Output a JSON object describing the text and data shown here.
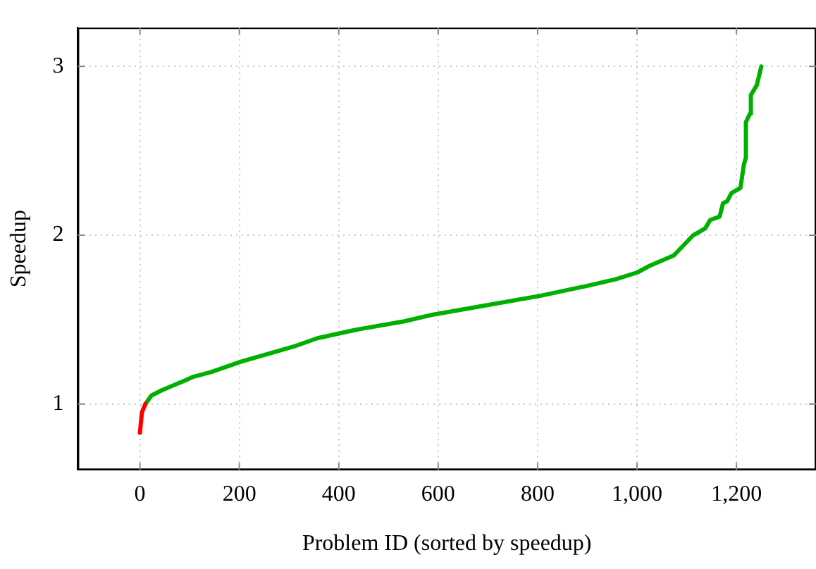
{
  "chart_data": {
    "type": "line",
    "xlabel": "Problem ID (sorted by speedup)",
    "ylabel": "Speedup",
    "xlim": [
      -125,
      1360
    ],
    "ylim": [
      0.61,
      3.23
    ],
    "xticks": [
      0,
      200,
      400,
      600,
      800,
      {
        "value": 1000,
        "label": "1,000"
      },
      {
        "value": 1200,
        "label": "1,200"
      }
    ],
    "yticks": [
      1,
      2,
      3
    ],
    "grid": true,
    "legend": false,
    "marker": "none",
    "line_style": "solid",
    "series": [
      {
        "color": "#ff0000",
        "x": [
          0,
          4,
          11
        ],
        "values": [
          0.83,
          0.95,
          1.0
        ]
      },
      {
        "color": "#00b000",
        "x": [
          11,
          23,
          43,
          91,
          106,
          144,
          202,
          261,
          309,
          357,
          435,
          532,
          590,
          687,
          803,
          900,
          958,
          1001,
          1026,
          1074,
          1113,
          1137,
          1147,
          1166,
          1173,
          1181,
          1190,
          1208,
          1215,
          1219,
          1219,
          1227,
          1229,
          1241,
          1250
        ],
        "values": [
          1.0,
          1.05,
          1.08,
          1.14,
          1.16,
          1.19,
          1.25,
          1.3,
          1.34,
          1.39,
          1.44,
          1.49,
          1.53,
          1.58,
          1.64,
          1.7,
          1.74,
          1.78,
          1.82,
          1.88,
          2.0,
          2.04,
          2.09,
          2.11,
          2.19,
          2.2,
          2.25,
          2.28,
          2.42,
          2.46,
          2.67,
          2.72,
          2.83,
          2.89,
          3.0
        ]
      }
    ]
  }
}
